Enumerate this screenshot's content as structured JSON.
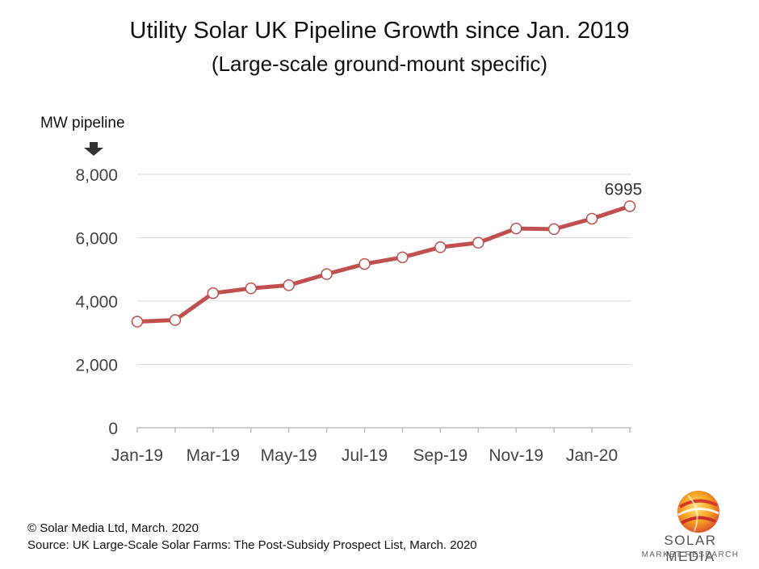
{
  "chart_data": {
    "type": "line",
    "title": "Utility Solar UK Pipeline Growth since Jan. 2019",
    "subtitle": "(Large-scale ground-mount specific)",
    "ylabel": "MW pipeline",
    "ylim": [
      0,
      8000
    ],
    "yticks": [
      "0",
      "2,000",
      "4,000",
      "6,000",
      "8,000"
    ],
    "ytick_values": [
      0,
      2000,
      4000,
      6000,
      8000
    ],
    "x": [
      "Jan-19",
      "Feb-19",
      "Mar-19",
      "Apr-19",
      "May-19",
      "Jun-19",
      "Jul-19",
      "Aug-19",
      "Sep-19",
      "Oct-19",
      "Nov-19",
      "Dec-19",
      "Jan-20",
      "Feb-20"
    ],
    "xtick_labels": [
      "Jan-19",
      "Mar-19",
      "May-19",
      "Jul-19",
      "Sep-19",
      "Nov-19",
      "Jan-20"
    ],
    "series": [
      {
        "values": [
          3350,
          3400,
          4250,
          4400,
          4500,
          4850,
          5170,
          5380,
          5700,
          5840,
          6290,
          6270,
          6600,
          6995
        ],
        "color": "#c0504d"
      }
    ],
    "annotations": [
      {
        "x": "Feb-20",
        "text": "6995"
      }
    ],
    "grid": true,
    "legend": "none"
  },
  "footer": {
    "copyright": "© Solar Media Ltd, March. 2020",
    "source": "Source: UK Large-Scale Solar Farms: The Post-Subsidy Prospect List,  March. 2020"
  },
  "logo": {
    "name": "SOLAR MEDIA",
    "sub": "MARKET RESEARCH"
  }
}
